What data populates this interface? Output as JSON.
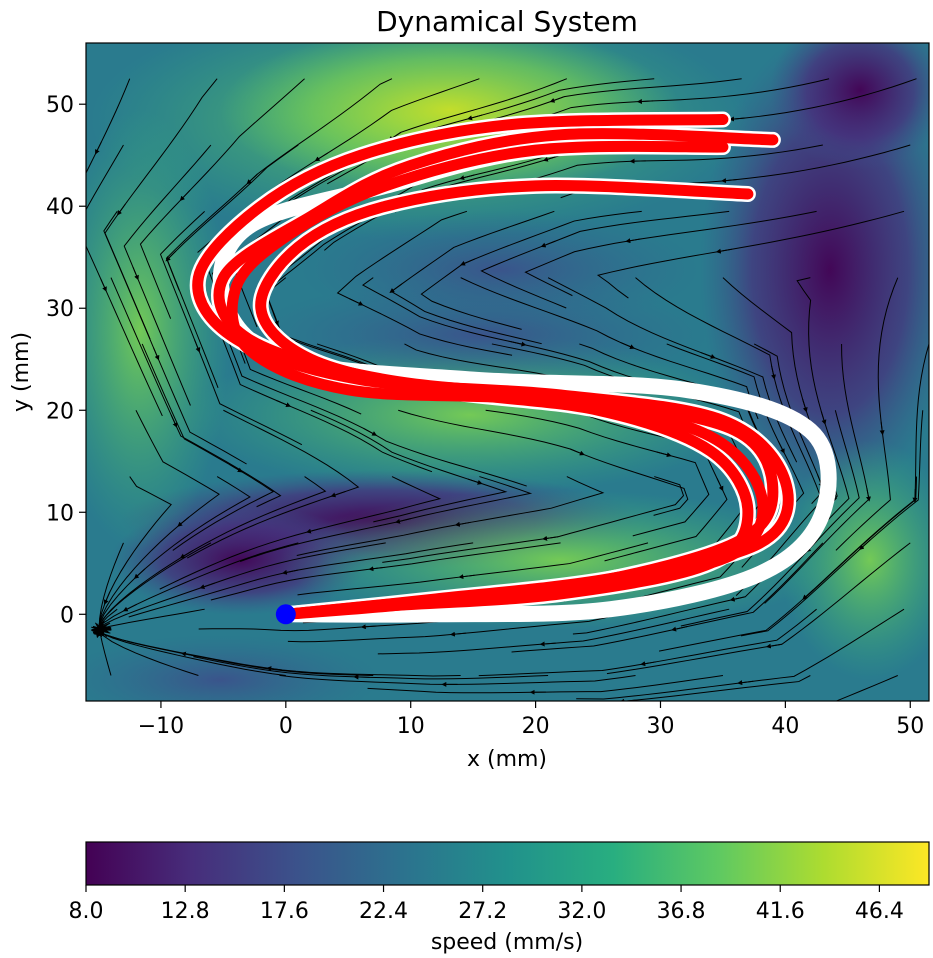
{
  "chart_data": {
    "type": "streamplot",
    "title": "Dynamical System",
    "xlabel": "x (mm)",
    "ylabel": "y (mm)",
    "xlim": [
      -16,
      51.5
    ],
    "ylim": [
      -8.5,
      56
    ],
    "xticks": [
      -10,
      0,
      10,
      20,
      30,
      40,
      50
    ],
    "yticks": [
      0,
      10,
      20,
      30,
      40,
      50
    ],
    "xtick_labels": [
      "−10",
      "0",
      "10",
      "20",
      "30",
      "40",
      "50"
    ],
    "ytick_labels": [
      "0",
      "10",
      "20",
      "30",
      "40",
      "50"
    ],
    "attractor": {
      "x": 0,
      "y": 0,
      "color": "#0000ff"
    },
    "colorbar": {
      "label": "speed (mm/s)",
      "min": 8.0,
      "max": 48.8,
      "ticks": [
        8.0,
        12.8,
        17.6,
        22.4,
        27.2,
        32.0,
        36.8,
        41.6,
        46.4
      ],
      "tick_labels": [
        "8.0",
        "12.8",
        "17.6",
        "22.4",
        "27.2",
        "32.0",
        "36.8",
        "41.6",
        "46.4"
      ],
      "colormap": "viridis"
    },
    "series": [
      {
        "role": "reproduction",
        "color": "#ff0000",
        "points": [
          [
            35,
            45.8
          ],
          [
            20,
            45.5
          ],
          [
            8,
            42
          ],
          [
            0,
            37
          ],
          [
            -4,
            32
          ],
          [
            -3,
            26
          ],
          [
            5,
            22
          ],
          [
            20,
            21
          ],
          [
            33,
            18
          ],
          [
            38,
            12
          ],
          [
            36,
            6
          ],
          [
            25,
            3
          ],
          [
            10,
            1.2
          ],
          [
            0,
            0
          ]
        ]
      },
      {
        "role": "reproduction",
        "color": "#ff0000",
        "points": [
          [
            37,
            41.2
          ],
          [
            20,
            42
          ],
          [
            8,
            40
          ],
          [
            1,
            36
          ],
          [
            -2,
            30
          ],
          [
            2,
            25
          ],
          [
            12,
            22
          ],
          [
            25,
            20
          ],
          [
            34,
            16
          ],
          [
            37,
            10
          ],
          [
            34,
            5
          ],
          [
            22,
            2
          ],
          [
            8,
            0.8
          ],
          [
            0,
            0
          ]
        ]
      },
      {
        "role": "reproduction",
        "color": "#ff0000",
        "points": [
          [
            39,
            46.5
          ],
          [
            22,
            47
          ],
          [
            10,
            44
          ],
          [
            2,
            39
          ],
          [
            -5,
            33
          ],
          [
            -3,
            27
          ],
          [
            8,
            23
          ],
          [
            24,
            21
          ],
          [
            36,
            18
          ],
          [
            39,
            12
          ],
          [
            36,
            7
          ],
          [
            24,
            3
          ],
          [
            10,
            1
          ],
          [
            0,
            0
          ]
        ]
      },
      {
        "role": "reproduction",
        "color": "#ff0000",
        "points": [
          [
            35,
            48.5
          ],
          [
            18,
            48
          ],
          [
            6,
            45
          ],
          [
            -2,
            40
          ],
          [
            -7,
            33
          ],
          [
            -4,
            27
          ],
          [
            6,
            23
          ],
          [
            22,
            21.5
          ],
          [
            35,
            19
          ],
          [
            40,
            13
          ],
          [
            38,
            7
          ],
          [
            26,
            3.5
          ],
          [
            12,
            1.5
          ],
          [
            0,
            0
          ]
        ]
      },
      {
        "role": "demonstration",
        "color": "#ffffff",
        "points": [
          [
            35,
            48.5
          ],
          [
            18,
            48
          ],
          [
            6,
            45
          ],
          [
            -2,
            40
          ],
          [
            -7,
            33
          ],
          [
            -4,
            27
          ],
          [
            6,
            23
          ],
          [
            22,
            21.5
          ],
          [
            35,
            19
          ],
          [
            40,
            13
          ],
          [
            38,
            7
          ],
          [
            26,
            3.5
          ],
          [
            12,
            1.5
          ],
          [
            0,
            0
          ]
        ]
      },
      {
        "role": "demonstration",
        "color": "#ffffff",
        "points": [
          [
            39,
            46.5
          ],
          [
            22,
            47
          ],
          [
            10,
            44
          ],
          [
            2,
            39
          ],
          [
            -5,
            33
          ],
          [
            -3,
            27
          ],
          [
            8,
            23
          ],
          [
            24,
            21
          ],
          [
            36,
            18
          ],
          [
            39,
            12
          ],
          [
            36,
            7
          ],
          [
            24,
            3
          ],
          [
            10,
            1
          ],
          [
            0,
            0
          ]
        ]
      },
      {
        "role": "demonstration",
        "color": "#ffffff",
        "points": [
          [
            37,
            41.2
          ],
          [
            20,
            42
          ],
          [
            8,
            40
          ],
          [
            1,
            36
          ],
          [
            -2,
            30
          ],
          [
            2,
            25
          ],
          [
            12,
            22
          ],
          [
            25,
            20
          ],
          [
            34,
            16
          ],
          [
            37,
            10
          ],
          [
            34,
            5
          ],
          [
            22,
            2
          ],
          [
            8,
            0.8
          ],
          [
            0,
            0
          ]
        ]
      },
      {
        "role": "demonstration",
        "color": "#ffffff",
        "points": [
          [
            35,
            45.8
          ],
          [
            20,
            45.5
          ],
          [
            8,
            42
          ],
          [
            -3,
            38
          ],
          [
            -5,
            31
          ],
          [
            0,
            25
          ],
          [
            15,
            23
          ],
          [
            32,
            22
          ],
          [
            42,
            18
          ],
          [
            43,
            10
          ],
          [
            38,
            4
          ],
          [
            26,
            0.5
          ],
          [
            12,
            0
          ],
          [
            0,
            0
          ]
        ]
      }
    ]
  }
}
